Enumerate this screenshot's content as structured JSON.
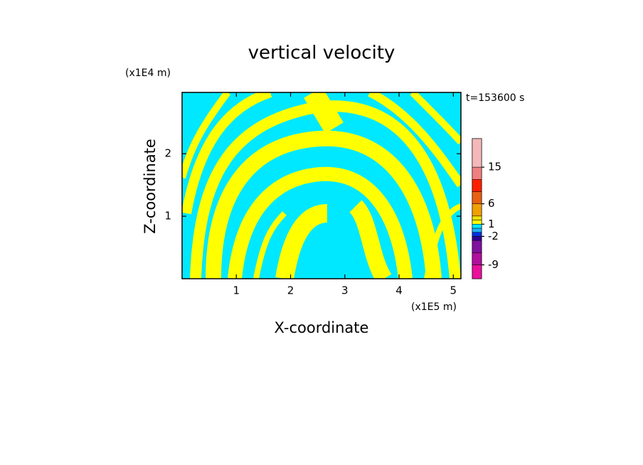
{
  "chart_data": {
    "type": "contour",
    "title": "vertical velocity",
    "x_label": "X-coordinate",
    "y_label": "Z-coordinate",
    "x_unit": "(x1E5 m)",
    "y_unit": "(x1E4 m)",
    "annotation": "t=153600 s",
    "xlim": [
      0,
      5.14
    ],
    "ylim": [
      0,
      2.98
    ],
    "xticks": [
      1,
      2,
      3,
      4,
      5
    ],
    "yticks": [
      1,
      2
    ],
    "colorbar": {
      "clim": [
        -12.4,
        22
      ],
      "levels": [
        -9,
        -6,
        -3,
        -2,
        -1,
        0,
        1,
        2,
        3,
        6,
        9,
        12,
        15
      ],
      "colors": [
        "#e8109c",
        "#b0109c",
        "#8010a0",
        "#300090",
        "#0030e0",
        "#20b0ff",
        "#00e8ff",
        "#ffff00",
        "#f0e000",
        "#f0a000",
        "#e86010",
        "#ff2000",
        "#f08080",
        "#f4b8b8",
        "#fde8e8"
      ],
      "ticks": [
        15,
        6,
        1,
        -2,
        -9
      ]
    }
  }
}
